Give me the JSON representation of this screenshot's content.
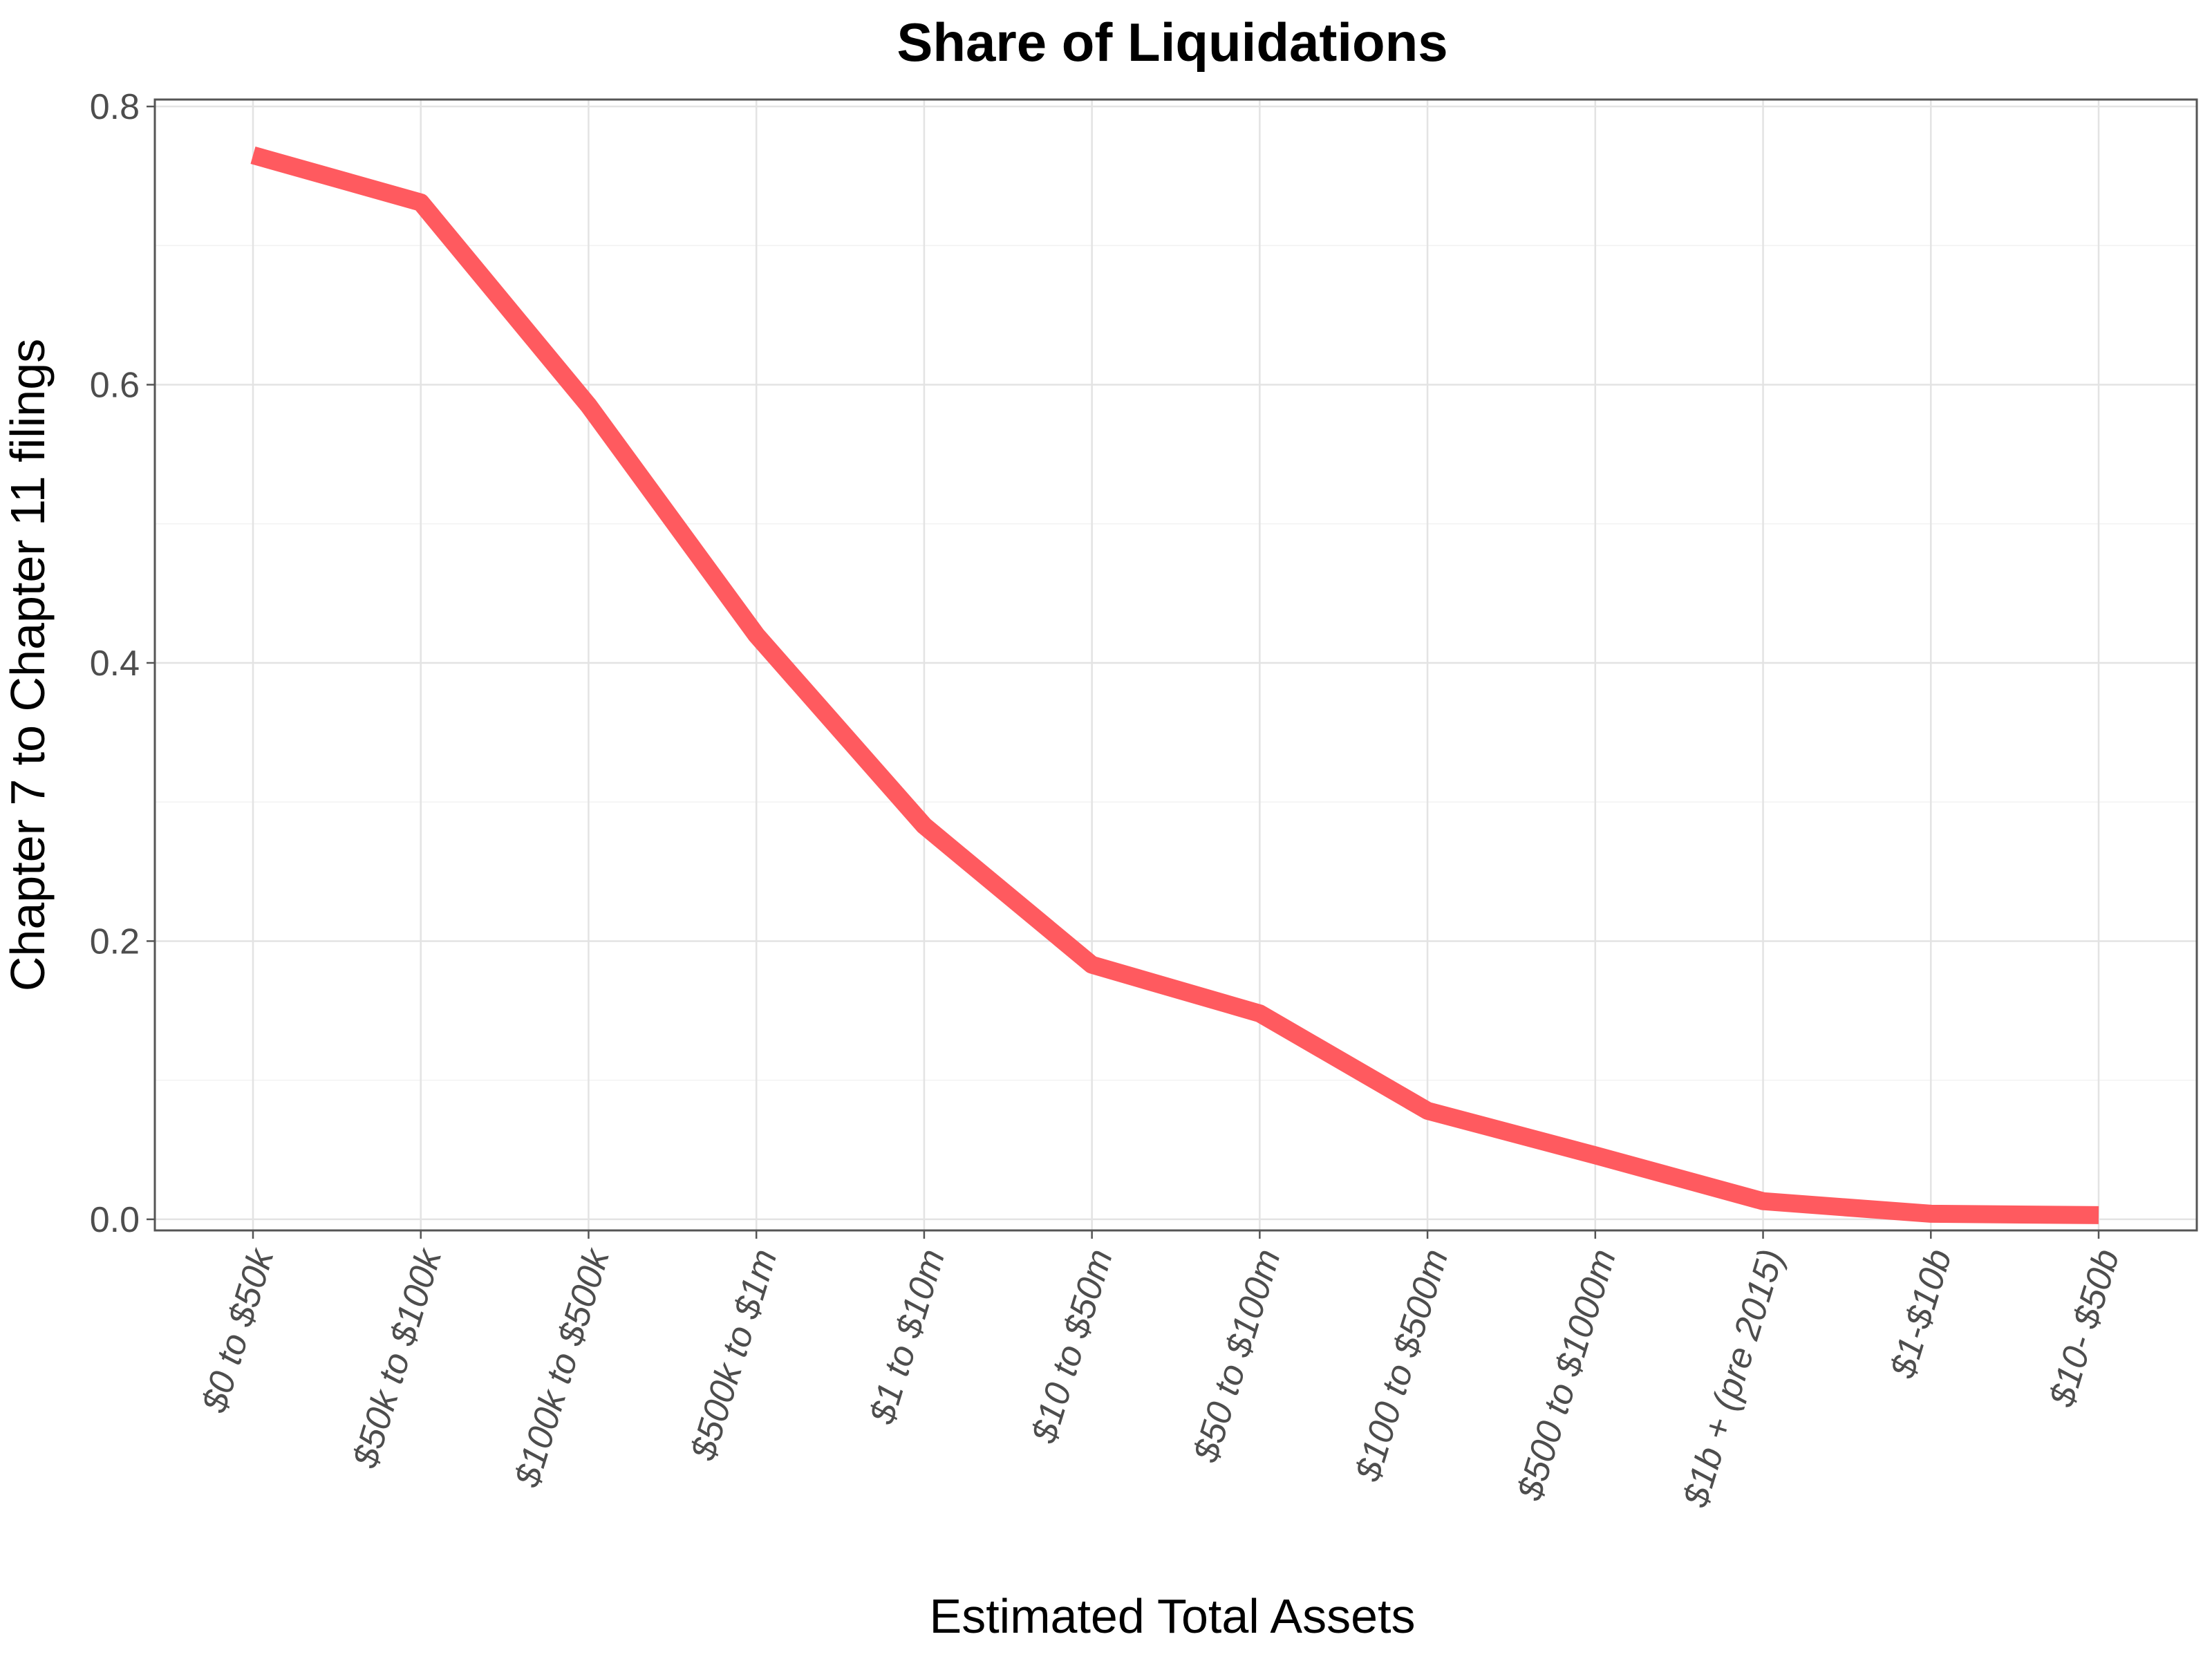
{
  "chart_data": {
    "type": "line",
    "title": "Share of Liquidations",
    "xlabel": "Estimated Total Assets",
    "ylabel": "Chapter 7 to Chapter 11 filings",
    "categories": [
      "$0 to $50k",
      "$50k to $100k",
      "$100k to $500k",
      "$500k to $1m",
      "$1 to $10m",
      "$10 to $50m",
      "$50 to $100m",
      "$100 to $500m",
      "$500 to $1000m",
      "$1b + (pre 2015)",
      "$1-$10b",
      "$10- $50b"
    ],
    "series": [
      {
        "name": "Share of Liquidations",
        "values": [
          0.765,
          0.731,
          0.585,
          0.42,
          0.283,
          0.183,
          0.148,
          0.078,
          0.046,
          0.013,
          0.004,
          0.003
        ]
      }
    ],
    "ylim": [
      -0.008,
      0.805
    ],
    "yticks": [
      0.0,
      0.2,
      0.4,
      0.6,
      0.8
    ],
    "ytick_labels": [
      "0.0",
      "0.2",
      "0.4",
      "0.6",
      "0.8"
    ],
    "line_color": "#ff5a5f",
    "grid": true,
    "legend": "none"
  }
}
